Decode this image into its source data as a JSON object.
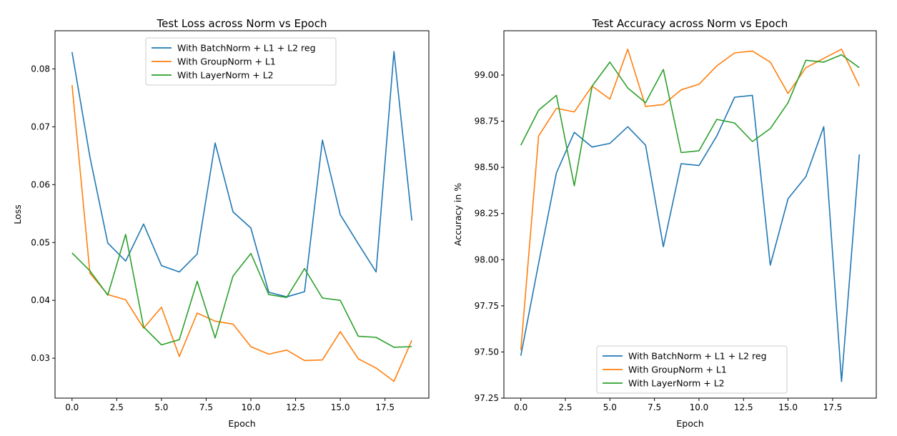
{
  "chart_data": [
    {
      "type": "line",
      "title": "Test Loss across Norm vs Epoch",
      "xlabel": "Epoch",
      "ylabel": "Loss",
      "xlim": [
        -0.95,
        19.95
      ],
      "ylim": [
        0.0231,
        0.0866
      ],
      "xticks": [
        0,
        2.5,
        5,
        7.5,
        10,
        12.5,
        15,
        17.5
      ],
      "xtick_labels": [
        "0.0",
        "2.5",
        "5.0",
        "7.5",
        "10.0",
        "12.5",
        "15.0",
        "17.5"
      ],
      "yticks": [
        0.03,
        0.04,
        0.05,
        0.06,
        0.07,
        0.08
      ],
      "ytick_labels": [
        "0.03",
        "0.04",
        "0.05",
        "0.06",
        "0.07",
        "0.08"
      ],
      "grid": false,
      "legend_position": "top-center",
      "x": [
        0,
        1,
        2,
        3,
        4,
        5,
        6,
        7,
        8,
        9,
        10,
        11,
        12,
        13,
        14,
        15,
        16,
        17,
        18,
        19
      ],
      "series": [
        {
          "name": "With BatchNorm + L1 + L2 reg",
          "color": "#1f77b4",
          "values": [
            0.0829,
            0.0648,
            0.0499,
            0.0468,
            0.0532,
            0.046,
            0.0449,
            0.048,
            0.0672,
            0.0553,
            0.0525,
            0.0414,
            0.0406,
            0.0415,
            0.0677,
            0.0548,
            0.0498,
            0.0449,
            0.083,
            0.0538
          ]
        },
        {
          "name": "With GroupNorm + L1",
          "color": "#ff7f0e",
          "values": [
            0.0772,
            0.0447,
            0.041,
            0.0401,
            0.0352,
            0.0388,
            0.0303,
            0.0378,
            0.0364,
            0.0359,
            0.032,
            0.0307,
            0.0314,
            0.0296,
            0.0297,
            0.0346,
            0.0299,
            0.0283,
            0.026,
            0.0331
          ]
        },
        {
          "name": "With LayerNorm + L2",
          "color": "#2ca02c",
          "values": [
            0.0482,
            0.0451,
            0.0409,
            0.0514,
            0.0354,
            0.0323,
            0.0332,
            0.0433,
            0.0335,
            0.0442,
            0.0481,
            0.041,
            0.0405,
            0.0455,
            0.0404,
            0.04,
            0.0338,
            0.0336,
            0.0319,
            0.032
          ]
        }
      ]
    },
    {
      "type": "line",
      "title": "Test Accuracy across Norm vs Epoch",
      "xlabel": "Epoch",
      "ylabel": "Accuracy in %",
      "xlim": [
        -0.95,
        19.95
      ],
      "ylim": [
        97.25,
        99.24
      ],
      "xticks": [
        0,
        2.5,
        5,
        7.5,
        10,
        12.5,
        15,
        17.5
      ],
      "xtick_labels": [
        "0.0",
        "2.5",
        "5.0",
        "7.5",
        "10.0",
        "12.5",
        "15.0",
        "17.5"
      ],
      "yticks": [
        97.25,
        97.5,
        97.75,
        98.0,
        98.25,
        98.5,
        98.75,
        99.0
      ],
      "ytick_labels": [
        "97.25",
        "97.50",
        "97.75",
        "98.00",
        "98.25",
        "98.50",
        "98.75",
        "99.00"
      ],
      "grid": false,
      "legend_position": "bottom-center",
      "x": [
        0,
        1,
        2,
        3,
        4,
        5,
        6,
        7,
        8,
        9,
        10,
        11,
        12,
        13,
        14,
        15,
        16,
        17,
        18,
        19
      ],
      "series": [
        {
          "name": "With BatchNorm + L1 + L2 reg",
          "color": "#1f77b4",
          "values": [
            97.48,
            97.98,
            98.47,
            98.69,
            98.61,
            98.63,
            98.72,
            98.62,
            98.07,
            98.52,
            98.51,
            98.67,
            98.88,
            98.89,
            97.97,
            98.33,
            98.45,
            98.72,
            97.34,
            98.57
          ]
        },
        {
          "name": "With GroupNorm + L1",
          "color": "#ff7f0e",
          "values": [
            97.51,
            98.67,
            98.82,
            98.8,
            98.94,
            98.87,
            99.14,
            98.83,
            98.84,
            98.92,
            98.95,
            99.05,
            99.12,
            99.13,
            99.07,
            98.9,
            99.04,
            99.09,
            99.14,
            98.94
          ]
        },
        {
          "name": "With LayerNorm + L2",
          "color": "#2ca02c",
          "values": [
            98.62,
            98.81,
            98.89,
            98.4,
            98.94,
            99.07,
            98.93,
            98.85,
            99.03,
            98.58,
            98.59,
            98.76,
            98.74,
            98.64,
            98.71,
            98.85,
            99.08,
            99.07,
            99.11,
            99.04
          ]
        }
      ]
    }
  ]
}
